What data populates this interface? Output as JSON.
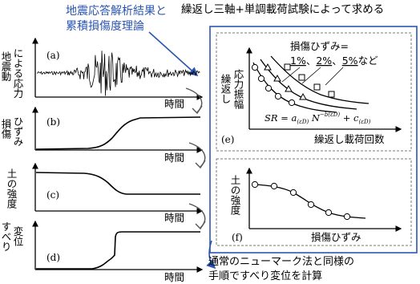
{
  "annotations": {
    "top_left_line1": "地震応答解析結果と",
    "top_left_line2": "累積損傷度理論",
    "top_right": "繰返し三軸+単調載荷試験によって求める",
    "bottom_line1": "通常のニューマーク法と同様の",
    "bottom_line2": "手順ですべり変位を計算"
  },
  "panels": {
    "a": {
      "label": "(a)",
      "ylabel_col1": "地震動",
      "ylabel_col2": "による応力",
      "xlabel": "時間"
    },
    "b": {
      "label": "(b)",
      "ylabel_col1": "損傷",
      "ylabel_col2": "ひずみ",
      "xlabel": "時間"
    },
    "c": {
      "label": "(c)",
      "ylabel_col1": "土の強度",
      "xlabel": "時間"
    },
    "d": {
      "label": "(d)",
      "ylabel_col1": "すべり",
      "ylabel_col2": "変位",
      "xlabel": "時間"
    },
    "e": {
      "label": "(e)",
      "ylabel_col1": "繰返し",
      "ylabel_col2": "応力振幅",
      "xlabel": "繰返し載荷回数",
      "legend_title": "損傷ひずみ=",
      "legend_items": [
        "1%",
        "2%",
        "5%"
      ],
      "legend_sep": "、",
      "legend_suffix": "など",
      "formula": "SR = a(εD) N^−b(εD) + c(εD)"
    },
    "f": {
      "label": "(f)",
      "ylabel": "土の強度",
      "xlabel": "損傷ひずみ"
    }
  },
  "colors": {
    "accent_blue": "#2b56b0",
    "frame_border": "#2b56b0",
    "dashed": "#7a7a7a"
  },
  "icons": [
    "curved-arrow-icon"
  ]
}
